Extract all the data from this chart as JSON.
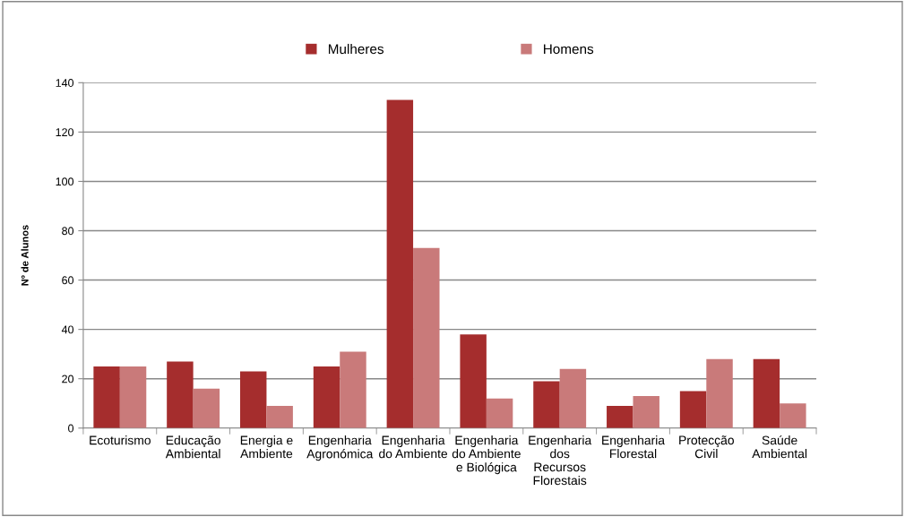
{
  "chart_data": {
    "type": "bar",
    "ylabel": "Nº de Alunos",
    "categories": [
      "Ecoturismo",
      "Educação Ambiental",
      "Energia e Ambiente",
      "Engenharia Agronómica",
      "Engenharia do Ambiente",
      "Engenharia do Ambiente e Biológica",
      "Engenharia dos Recursos Florestais",
      "Engenharia Florestal",
      "Protecção Civil",
      "Saúde Ambiental"
    ],
    "series": [
      {
        "name": "Mulheres",
        "color": "#a52d2d",
        "values": [
          25,
          27,
          23,
          25,
          133,
          38,
          19,
          9,
          15,
          28
        ]
      },
      {
        "name": "Homens",
        "color": "#c97a7a",
        "values": [
          25,
          16,
          9,
          31,
          73,
          12,
          24,
          13,
          28,
          10
        ]
      }
    ],
    "ylim": [
      0,
      140
    ],
    "yticks": [
      0,
      20,
      40,
      60,
      80,
      100,
      120,
      140
    ],
    "grid": "y",
    "legend": "top"
  }
}
